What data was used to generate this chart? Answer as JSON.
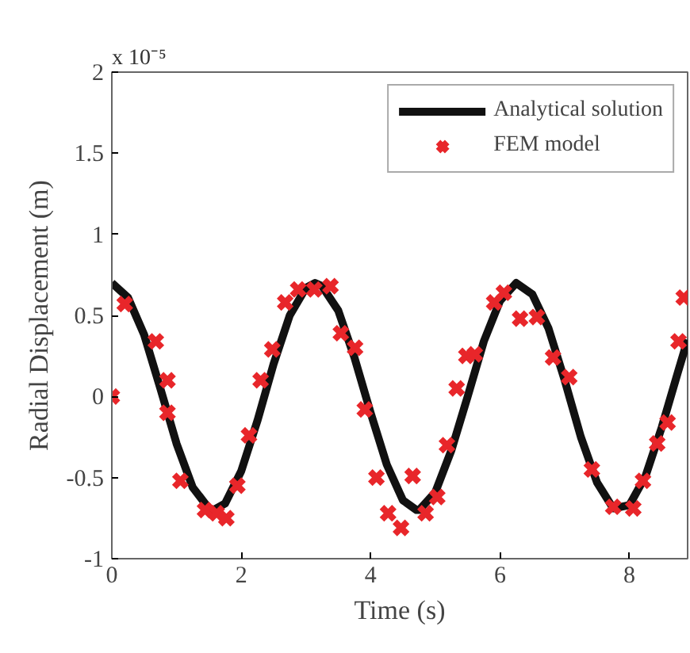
{
  "chart_data": {
    "type": "line",
    "xlabel": "Time (s)",
    "ylabel": "Radial Displacement (m)",
    "annotations": [
      "x 10⁻⁵"
    ],
    "xlim": [
      0,
      8.9
    ],
    "ylim": [
      -1,
      2
    ],
    "xticks": [
      0,
      2,
      4,
      6,
      8
    ],
    "yticks": [
      -1,
      -0.5,
      0,
      0.5,
      1,
      1.5,
      2
    ],
    "grid": false,
    "legend": "top right",
    "series": [
      {
        "name": "Analytical solution",
        "color": "#111111",
        "marker": "none",
        "line_style": "solid",
        "x": [
          0,
          0.25,
          0.5,
          0.75,
          1,
          1.25,
          1.5,
          1.57,
          1.75,
          2,
          2.25,
          2.5,
          2.75,
          3,
          3.14,
          3.25,
          3.5,
          3.75,
          4,
          4.25,
          4.5,
          4.71,
          4.75,
          5,
          5.25,
          5.5,
          5.75,
          6,
          6.25,
          6.5,
          6.75,
          7,
          7.25,
          7.5,
          7.75,
          8,
          8.25,
          8.5,
          8.75,
          8.9
        ],
        "values": [
          0.7,
          0.61,
          0.38,
          0.05,
          -0.29,
          -0.56,
          -0.69,
          -0.7,
          -0.66,
          -0.46,
          -0.15,
          0.2,
          0.5,
          0.67,
          0.7,
          0.68,
          0.53,
          0.24,
          -0.1,
          -0.42,
          -0.64,
          -0.7,
          -0.7,
          -0.59,
          -0.33,
          0.0,
          0.34,
          0.59,
          0.7,
          0.63,
          0.42,
          0.1,
          -0.25,
          -0.53,
          -0.69,
          -0.67,
          -0.49,
          -0.19,
          0.15,
          0.35
        ]
      },
      {
        "name": "FEM model",
        "type": "scatter",
        "color": "#e8262a",
        "marker": "cross",
        "x": [
          0,
          0.2,
          0.68,
          0.86,
          0.86,
          1.06,
          1.44,
          1.62,
          1.77,
          1.94,
          2.12,
          2.3,
          2.48,
          2.68,
          2.88,
          3.13,
          3.38,
          3.54,
          3.76,
          3.91,
          4.09,
          4.27,
          4.47,
          4.65,
          4.85,
          5.03,
          5.18,
          5.33,
          5.48,
          5.61,
          5.91,
          6.06,
          6.31,
          6.57,
          6.82,
          7.07,
          7.42,
          7.75,
          8.06,
          8.21,
          8.43,
          8.59,
          8.76,
          8.84
        ],
        "values": [
          0,
          0.57,
          0.34,
          0.1,
          -0.1,
          -0.52,
          -0.7,
          -0.72,
          -0.75,
          -0.55,
          -0.24,
          0.1,
          0.29,
          0.58,
          0.66,
          0.66,
          0.68,
          0.39,
          0.3,
          -0.08,
          -0.5,
          -0.72,
          -0.81,
          -0.49,
          -0.72,
          -0.62,
          -0.3,
          0.05,
          0.25,
          0.26,
          0.58,
          0.64,
          0.48,
          0.49,
          0.24,
          0.12,
          -0.45,
          -0.68,
          -0.69,
          -0.52,
          -0.29,
          -0.16,
          0.34,
          0.61
        ]
      }
    ]
  }
}
